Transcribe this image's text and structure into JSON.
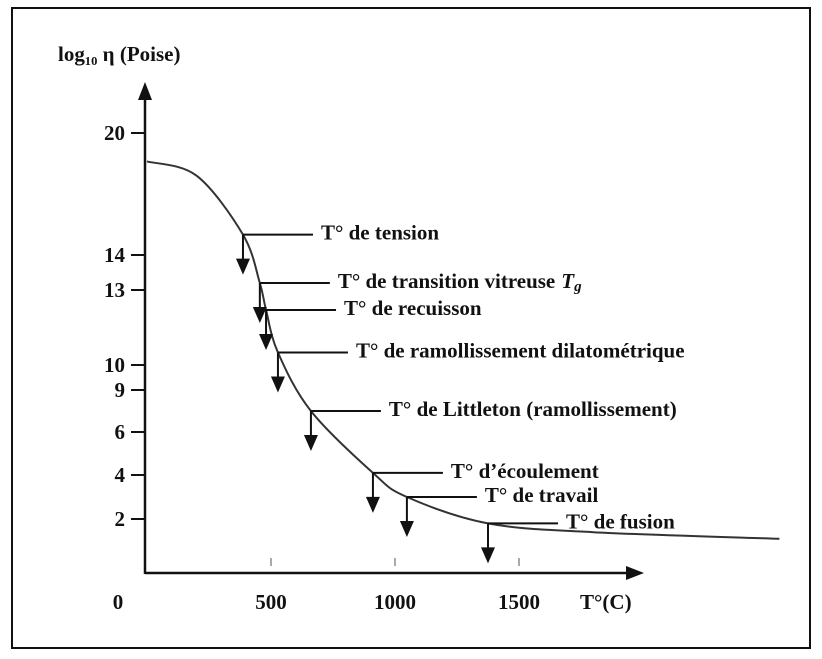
{
  "chart_data": {
    "type": "line",
    "y_label": "log₁₀ η (Poise)",
    "x_label": "T°(C)",
    "xticks": [
      0,
      500,
      1000,
      1500
    ],
    "yticks": [
      2,
      4,
      6,
      9,
      10,
      13,
      14,
      20
    ],
    "xlim": [
      0,
      2000
    ],
    "x": [
      0,
      200,
      387,
      455,
      480,
      528,
      661,
      911,
      1048,
      1375,
      1800,
      2550
    ],
    "series": [
      {
        "color": "#333333",
        "values": [
          18.6,
          17.9,
          15,
          13.2,
          12.2,
          10.5,
          7.5,
          4.1,
          3,
          1.8,
          1.4,
          1.1
        ]
      }
    ],
    "annotations": [
      {
        "label": "T° de tension",
        "x": 387,
        "y": 15
      },
      {
        "label": "T° de transition vitreuse",
        "symbol": "T",
        "subscript": "g",
        "x": 455,
        "y": 13.2
      },
      {
        "label": "T° de recuisson",
        "x": 480,
        "y": 12.2
      },
      {
        "label": "T° de ramollissement dilatométrique",
        "x": 528,
        "y": 10.5
      },
      {
        "label": "T° de Littleton (ramollissement)",
        "x": 661,
        "y": 7.5
      },
      {
        "label": "T° d’écoulement",
        "x": 911,
        "y": 4.1
      },
      {
        "label": "T° de travail",
        "x": 1048,
        "y": 3
      },
      {
        "label": "T° de fusion",
        "x": 1375,
        "y": 1.8
      }
    ]
  }
}
